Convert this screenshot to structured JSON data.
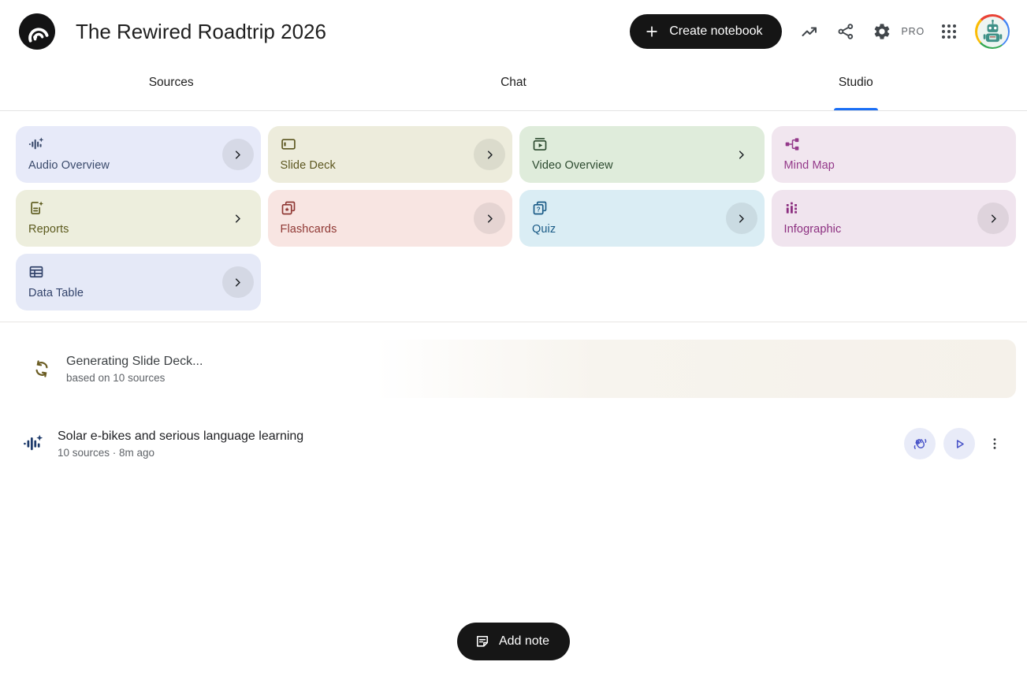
{
  "header": {
    "logo_icon": "notebooklm-logo",
    "title": "The Rewired Roadtrip 2026",
    "create_notebook_label": "Create notebook",
    "plan_badge": "PRO",
    "action_icons": [
      "trending-icon",
      "share-icon",
      "settings-icon",
      "apps-grid-icon"
    ],
    "avatar_icon": "robot-avatar"
  },
  "tabs": [
    {
      "label": "Sources",
      "active": false
    },
    {
      "label": "Chat",
      "active": false
    },
    {
      "label": "Studio",
      "active": true
    }
  ],
  "colors": {
    "accent_blue": "#1a6ef5",
    "button_black": "#151515",
    "action_circle_bg": "#e8ebf8",
    "action_icon": "#4853c8",
    "spinner_olive": "#6a5c22"
  },
  "studio": {
    "cards": [
      {
        "label": "Audio Overview",
        "icon": "audio-waveform-icon",
        "bg": "#e7eaf9",
        "fg": "#3a4a6b",
        "chevron": "circle"
      },
      {
        "label": "Slide Deck",
        "icon": "slide-deck-icon",
        "bg": "#edecdc",
        "fg": "#5c561f",
        "chevron": "circle"
      },
      {
        "label": "Video Overview",
        "icon": "video-overview-icon",
        "bg": "#dfecdb",
        "fg": "#2c4a2f",
        "chevron": "plain"
      },
      {
        "label": "Mind Map",
        "icon": "mind-map-icon",
        "bg": "#f1e6ef",
        "fg": "#94398a",
        "chevron": "none"
      },
      {
        "label": "Reports",
        "icon": "reports-icon",
        "bg": "#edeedd",
        "fg": "#5c5a1d",
        "chevron": "plain"
      },
      {
        "label": "Flashcards",
        "icon": "flashcards-icon",
        "bg": "#f8e5e2",
        "fg": "#8f3733",
        "chevron": "circle"
      },
      {
        "label": "Quiz",
        "icon": "quiz-icon",
        "bg": "#daedf4",
        "fg": "#195a86",
        "chevron": "circle"
      },
      {
        "label": "Infographic",
        "icon": "infographic-icon",
        "bg": "#f0e4ee",
        "fg": "#8c2f80",
        "chevron": "circle"
      },
      {
        "label": "Data Table",
        "icon": "data-table-icon",
        "bg": "#e5e9f7",
        "fg": "#31426a",
        "chevron": "circle"
      }
    ],
    "generating": {
      "icon": "sync-icon",
      "title": "Generating Slide Deck...",
      "subtitle": "based on 10 sources"
    },
    "audio_item": {
      "icon": "audio-waveform-icon",
      "title": "Solar e-bikes and serious language learning",
      "meta": "10 sources · 8m ago",
      "actions": [
        "interactive-icon",
        "play-icon",
        "more-vert-icon"
      ]
    },
    "add_note_label": "Add note"
  }
}
